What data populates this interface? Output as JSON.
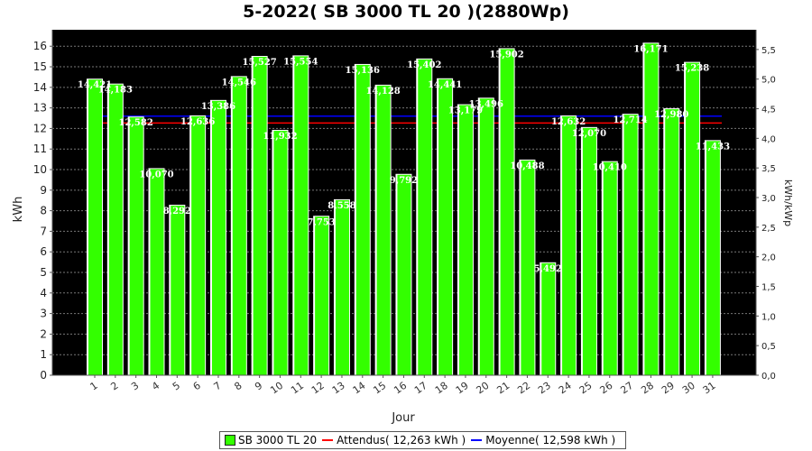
{
  "chart_data": {
    "type": "bar",
    "title": "5-2022( SB 3000 TL 20 )(2880Wp)",
    "xlabel": "Jour",
    "ylabel": "kWh",
    "ylabel_right": "kWh/kWp",
    "ylim": [
      0,
      16.8
    ],
    "yticks": [
      0,
      1,
      2,
      3,
      4,
      5,
      6,
      7,
      8,
      9,
      10,
      11,
      12,
      13,
      14,
      15,
      16
    ],
    "ylim_right": [
      0,
      5.833
    ],
    "yticks_right": [
      "0,0",
      "0,5",
      "1,0",
      "1,5",
      "2,0",
      "2,5",
      "3,0",
      "3,5",
      "4,0",
      "4,5",
      "5,0",
      "5,5"
    ],
    "categories": [
      "1",
      "2",
      "3",
      "4",
      "5",
      "6",
      "7",
      "8",
      "9",
      "10",
      "11",
      "12",
      "13",
      "14",
      "15",
      "16",
      "17",
      "18",
      "19",
      "20",
      "21",
      "22",
      "23",
      "24",
      "25",
      "26",
      "27",
      "28",
      "29",
      "30",
      "31"
    ],
    "series": [
      {
        "name": "SB 3000 TL 20",
        "color": "#33ff00",
        "values": [
          14.421,
          14.183,
          12.582,
          10.07,
          8.292,
          12.636,
          13.386,
          14.546,
          15.527,
          11.932,
          15.554,
          7.753,
          8.558,
          15.136,
          14.128,
          9.792,
          15.402,
          14.441,
          13.179,
          13.496,
          15.902,
          10.488,
          5.492,
          12.632,
          12.07,
          10.41,
          12.714,
          16.171,
          12.98,
          15.238,
          11.433
        ],
        "labels": [
          "14,421",
          "14,183",
          "12,582",
          "10,070",
          "8,292",
          "12,636",
          "13,386",
          "14,546",
          "15,527",
          "11,932",
          "15,554",
          "7,753",
          "8,558",
          "15,136",
          "14,128",
          "9,792",
          "15,402",
          "14,441",
          "13,179",
          "13,496",
          "15,902",
          "10,488",
          "5,492",
          "12,632",
          "12,070",
          "10,410",
          "12,714",
          "16,171",
          "12,980",
          "15,238",
          "11,433"
        ]
      }
    ],
    "reference_lines": [
      {
        "name": "Attendus",
        "value": 12.263,
        "color": "#ff0000",
        "legend": "Attendus( 12,263 kWh )"
      },
      {
        "name": "Moyenne",
        "value": 12.598,
        "color": "#0000ff",
        "legend": "Moyenne( 12,598 kWh )"
      }
    ],
    "plot_background": "#000000",
    "grid": true,
    "legend_position": "bottom"
  },
  "legend": {
    "bar_label": "SB 3000 TL 20",
    "attendus_label": "Attendus( 12,263 kWh )",
    "moyenne_label": "Moyenne( 12,598 kWh )"
  }
}
